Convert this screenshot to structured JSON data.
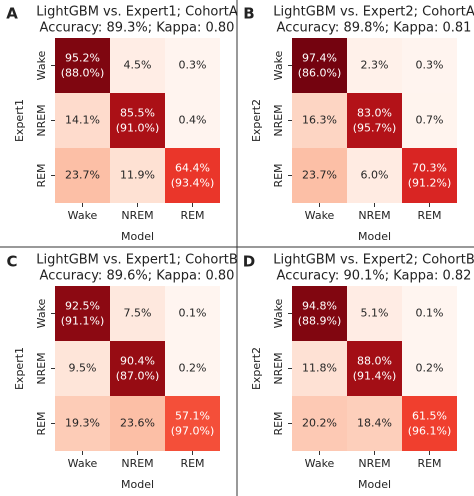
{
  "chart_data": [
    {
      "type": "heatmap",
      "panel_label": "A",
      "title": "LightGBM vs. Expert1; CohortA",
      "subtitle": "Accuracy: 89.3%; Kappa: 0.80",
      "x_label": "Model",
      "y_label": "Expert1",
      "x_categories": [
        "Wake",
        "NREM",
        "REM"
      ],
      "y_categories": [
        "Wake",
        "NREM",
        "REM"
      ],
      "colormap": "Reds",
      "values": [
        [
          95.2,
          4.5,
          0.3
        ],
        [
          14.1,
          85.5,
          0.4
        ],
        [
          23.7,
          11.9,
          64.4
        ]
      ],
      "value_labels": [
        [
          "95.2%",
          "4.5%",
          "0.3%"
        ],
        [
          "14.1%",
          "85.5%",
          "0.4%"
        ],
        [
          "23.7%",
          "11.9%",
          "64.4%"
        ]
      ],
      "diagonal_values": [
        88.0,
        91.0,
        93.4
      ],
      "diagonal_labels": [
        "(88.0%)",
        "(91.0%)",
        "(93.4%)"
      ]
    },
    {
      "type": "heatmap",
      "panel_label": "B",
      "title": "LightGBM vs. Expert2; CohortA",
      "subtitle": "Accuracy: 89.8%; Kappa: 0.81",
      "x_label": "Model",
      "y_label": "Expert2",
      "x_categories": [
        "Wake",
        "NREM",
        "REM"
      ],
      "y_categories": [
        "Wake",
        "NREM",
        "REM"
      ],
      "colormap": "Reds",
      "values": [
        [
          97.4,
          2.3,
          0.3
        ],
        [
          16.3,
          83.0,
          0.7
        ],
        [
          23.7,
          6.0,
          70.3
        ]
      ],
      "value_labels": [
        [
          "97.4%",
          "2.3%",
          "0.3%"
        ],
        [
          "16.3%",
          "83.0%",
          "0.7%"
        ],
        [
          "23.7%",
          "6.0%",
          "70.3%"
        ]
      ],
      "diagonal_values": [
        86.0,
        95.7,
        91.2
      ],
      "diagonal_labels": [
        "(86.0%)",
        "(95.7%)",
        "(91.2%)"
      ]
    },
    {
      "type": "heatmap",
      "panel_label": "C",
      "title": "LightGBM vs. Expert1; CohortB",
      "subtitle": "Accuracy: 89.6%; Kappa: 0.80",
      "x_label": "Model",
      "y_label": "Expert1",
      "x_categories": [
        "Wake",
        "NREM",
        "REM"
      ],
      "y_categories": [
        "Wake",
        "NREM",
        "REM"
      ],
      "colormap": "Reds",
      "values": [
        [
          92.5,
          7.5,
          0.1
        ],
        [
          9.5,
          90.4,
          0.2
        ],
        [
          19.3,
          23.6,
          57.1
        ]
      ],
      "value_labels": [
        [
          "92.5%",
          "7.5%",
          "0.1%"
        ],
        [
          "9.5%",
          "90.4%",
          "0.2%"
        ],
        [
          "19.3%",
          "23.6%",
          "57.1%"
        ]
      ],
      "diagonal_values": [
        91.1,
        87.0,
        97.0
      ],
      "diagonal_labels": [
        "(91.1%)",
        "(87.0%)",
        "(97.0%)"
      ]
    },
    {
      "type": "heatmap",
      "panel_label": "D",
      "title": "LightGBM vs. Expert2; CohortB",
      "subtitle": "Accuracy: 90.1%; Kappa: 0.82",
      "x_label": "Model",
      "y_label": "Expert2",
      "x_categories": [
        "Wake",
        "NREM",
        "REM"
      ],
      "y_categories": [
        "Wake",
        "NREM",
        "REM"
      ],
      "colormap": "Reds",
      "values": [
        [
          94.8,
          5.1,
          0.1
        ],
        [
          11.8,
          88.0,
          0.2
        ],
        [
          20.2,
          18.4,
          61.5
        ]
      ],
      "value_labels": [
        [
          "94.8%",
          "5.1%",
          "0.1%"
        ],
        [
          "11.8%",
          "88.0%",
          "0.2%"
        ],
        [
          "20.2%",
          "18.4%",
          "61.5%"
        ]
      ],
      "diagonal_values": [
        88.9,
        91.4,
        96.1
      ],
      "diagonal_labels": [
        "(88.9%)",
        "(91.4%)",
        "(96.1%)"
      ]
    }
  ]
}
